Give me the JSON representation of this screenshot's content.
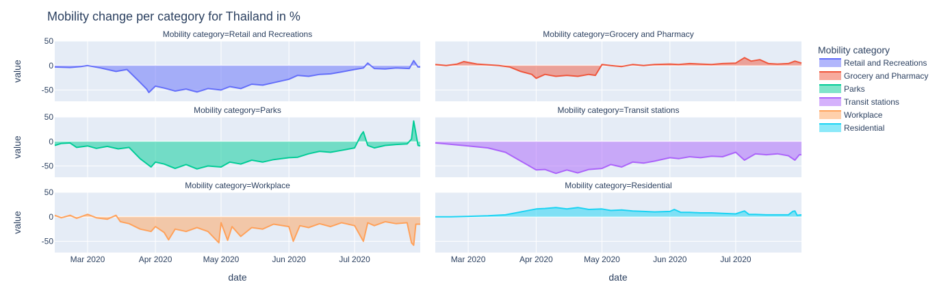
{
  "chart_data": {
    "type": "area",
    "title": "Mobility change per category for Thailand in %",
    "x_label": "date",
    "y_label": "value",
    "x_ticks": [
      "Mar 2020",
      "Apr 2020",
      "May 2020",
      "Jun 2020",
      "Jul 2020"
    ],
    "x_tick_dates": [
      "2020-03-01",
      "2020-04-01",
      "2020-05-01",
      "2020-06-01",
      "2020-07-01"
    ],
    "x_range": [
      "2020-02-15",
      "2020-07-31"
    ],
    "y_ticks": [
      50,
      0,
      -50
    ],
    "y_range": [
      -73,
      50
    ],
    "grid": true,
    "legend_title": "Mobility category",
    "legend_position": "right",
    "series": [
      {
        "name": "Retail and Recreations",
        "facet_label": "Mobility category=Retail and Recreations",
        "color": "#636efa",
        "fill": "rgba(99,110,250,0.5)",
        "points": [
          [
            "2020-02-15",
            -3
          ],
          [
            "2020-02-22",
            -4
          ],
          [
            "2020-02-27",
            -2
          ],
          [
            "2020-03-01",
            0
          ],
          [
            "2020-03-07",
            -5
          ],
          [
            "2020-03-14",
            -12
          ],
          [
            "2020-03-19",
            -8
          ],
          [
            "2020-03-24",
            -30
          ],
          [
            "2020-03-28",
            -48
          ],
          [
            "2020-03-29",
            -55
          ],
          [
            "2020-04-01",
            -42
          ],
          [
            "2020-04-05",
            -46
          ],
          [
            "2020-04-10",
            -52
          ],
          [
            "2020-04-15",
            -48
          ],
          [
            "2020-04-20",
            -54
          ],
          [
            "2020-04-25",
            -47
          ],
          [
            "2020-05-01",
            -50
          ],
          [
            "2020-05-05",
            -43
          ],
          [
            "2020-05-10",
            -47
          ],
          [
            "2020-05-15",
            -38
          ],
          [
            "2020-05-20",
            -40
          ],
          [
            "2020-05-25",
            -35
          ],
          [
            "2020-06-01",
            -28
          ],
          [
            "2020-06-05",
            -20
          ],
          [
            "2020-06-10",
            -22
          ],
          [
            "2020-06-15",
            -18
          ],
          [
            "2020-06-20",
            -17
          ],
          [
            "2020-06-25",
            -13
          ],
          [
            "2020-07-01",
            -8
          ],
          [
            "2020-07-05",
            -5
          ],
          [
            "2020-07-07",
            5
          ],
          [
            "2020-07-10",
            -6
          ],
          [
            "2020-07-15",
            -7
          ],
          [
            "2020-07-20",
            -5
          ],
          [
            "2020-07-26",
            -6
          ],
          [
            "2020-07-28",
            10
          ],
          [
            "2020-07-30",
            -3
          ],
          [
            "2020-07-31",
            -3
          ]
        ]
      },
      {
        "name": "Grocery and Pharmacy",
        "facet_label": "Mobility category=Grocery and Pharmacy",
        "color": "#ef553b",
        "fill": "rgba(239,85,59,0.5)",
        "points": [
          [
            "2020-02-15",
            2
          ],
          [
            "2020-02-20",
            0
          ],
          [
            "2020-02-25",
            3
          ],
          [
            "2020-02-28",
            8
          ],
          [
            "2020-03-05",
            3
          ],
          [
            "2020-03-15",
            0
          ],
          [
            "2020-03-20",
            -3
          ],
          [
            "2020-03-25",
            -12
          ],
          [
            "2020-03-30",
            -18
          ],
          [
            "2020-04-01",
            -26
          ],
          [
            "2020-04-05",
            -18
          ],
          [
            "2020-04-10",
            -22
          ],
          [
            "2020-04-15",
            -20
          ],
          [
            "2020-04-20",
            -22
          ],
          [
            "2020-04-25",
            -18
          ],
          [
            "2020-04-28",
            -20
          ],
          [
            "2020-05-01",
            2
          ],
          [
            "2020-05-05",
            0
          ],
          [
            "2020-05-10",
            -2
          ],
          [
            "2020-05-15",
            2
          ],
          [
            "2020-05-20",
            0
          ],
          [
            "2020-05-25",
            2
          ],
          [
            "2020-06-01",
            3
          ],
          [
            "2020-06-05",
            2
          ],
          [
            "2020-06-10",
            4
          ],
          [
            "2020-06-15",
            3
          ],
          [
            "2020-06-20",
            2
          ],
          [
            "2020-06-25",
            4
          ],
          [
            "2020-07-01",
            5
          ],
          [
            "2020-07-05",
            16
          ],
          [
            "2020-07-08",
            9
          ],
          [
            "2020-07-12",
            12
          ],
          [
            "2020-07-16",
            4
          ],
          [
            "2020-07-20",
            3
          ],
          [
            "2020-07-25",
            4
          ],
          [
            "2020-07-28",
            9
          ],
          [
            "2020-07-31",
            5
          ]
        ]
      },
      {
        "name": "Parks",
        "facet_label": "Mobility category=Parks",
        "color": "#00cc96",
        "fill": "rgba(0,204,150,0.5)",
        "points": [
          [
            "2020-02-15",
            -8
          ],
          [
            "2020-02-18",
            -4
          ],
          [
            "2020-02-22",
            -3
          ],
          [
            "2020-02-25",
            -12
          ],
          [
            "2020-03-01",
            -9
          ],
          [
            "2020-03-05",
            -14
          ],
          [
            "2020-03-10",
            -10
          ],
          [
            "2020-03-15",
            -15
          ],
          [
            "2020-03-20",
            -12
          ],
          [
            "2020-03-25",
            -35
          ],
          [
            "2020-03-30",
            -52
          ],
          [
            "2020-04-01",
            -42
          ],
          [
            "2020-04-05",
            -46
          ],
          [
            "2020-04-10",
            -55
          ],
          [
            "2020-04-15",
            -47
          ],
          [
            "2020-04-20",
            -56
          ],
          [
            "2020-04-25",
            -50
          ],
          [
            "2020-05-01",
            -52
          ],
          [
            "2020-05-05",
            -42
          ],
          [
            "2020-05-10",
            -46
          ],
          [
            "2020-05-15",
            -38
          ],
          [
            "2020-05-20",
            -42
          ],
          [
            "2020-05-25",
            -37
          ],
          [
            "2020-06-01",
            -33
          ],
          [
            "2020-06-05",
            -32
          ],
          [
            "2020-06-10",
            -25
          ],
          [
            "2020-06-15",
            -20
          ],
          [
            "2020-06-20",
            -22
          ],
          [
            "2020-06-25",
            -18
          ],
          [
            "2020-07-01",
            -13
          ],
          [
            "2020-07-04",
            14
          ],
          [
            "2020-07-05",
            20
          ],
          [
            "2020-07-07",
            -8
          ],
          [
            "2020-07-10",
            -13
          ],
          [
            "2020-07-15",
            -8
          ],
          [
            "2020-07-20",
            -6
          ],
          [
            "2020-07-25",
            -5
          ],
          [
            "2020-07-27",
            5
          ],
          [
            "2020-07-28",
            42
          ],
          [
            "2020-07-30",
            -8
          ],
          [
            "2020-07-31",
            -9
          ]
        ]
      },
      {
        "name": "Transit stations",
        "facet_label": "Mobility category=Transit stations",
        "color": "#ab63fa",
        "fill": "rgba(171,99,250,0.5)",
        "points": [
          [
            "2020-02-15",
            -3
          ],
          [
            "2020-02-20",
            -5
          ],
          [
            "2020-02-25",
            -7
          ],
          [
            "2020-03-01",
            -9
          ],
          [
            "2020-03-10",
            -13
          ],
          [
            "2020-03-18",
            -22
          ],
          [
            "2020-03-25",
            -40
          ],
          [
            "2020-04-01",
            -58
          ],
          [
            "2020-04-05",
            -57
          ],
          [
            "2020-04-10",
            -65
          ],
          [
            "2020-04-15",
            -58
          ],
          [
            "2020-04-20",
            -64
          ],
          [
            "2020-04-25",
            -57
          ],
          [
            "2020-05-01",
            -55
          ],
          [
            "2020-05-05",
            -47
          ],
          [
            "2020-05-10",
            -52
          ],
          [
            "2020-05-15",
            -42
          ],
          [
            "2020-05-20",
            -44
          ],
          [
            "2020-05-25",
            -40
          ],
          [
            "2020-06-01",
            -33
          ],
          [
            "2020-06-05",
            -35
          ],
          [
            "2020-06-10",
            -31
          ],
          [
            "2020-06-15",
            -33
          ],
          [
            "2020-06-20",
            -30
          ],
          [
            "2020-06-25",
            -31
          ],
          [
            "2020-07-01",
            -22
          ],
          [
            "2020-07-05",
            -38
          ],
          [
            "2020-07-10",
            -25
          ],
          [
            "2020-07-15",
            -27
          ],
          [
            "2020-07-20",
            -25
          ],
          [
            "2020-07-25",
            -29
          ],
          [
            "2020-07-28",
            -38
          ],
          [
            "2020-07-30",
            -27
          ],
          [
            "2020-07-31",
            -27
          ]
        ]
      },
      {
        "name": "Workplace",
        "facet_label": "Mobility category=Workplace",
        "color": "#ffa15a",
        "fill": "rgba(255,161,90,0.5)",
        "points": [
          [
            "2020-02-15",
            3
          ],
          [
            "2020-02-18",
            -2
          ],
          [
            "2020-02-22",
            3
          ],
          [
            "2020-02-25",
            -3
          ],
          [
            "2020-03-01",
            5
          ],
          [
            "2020-03-05",
            -2
          ],
          [
            "2020-03-10",
            -5
          ],
          [
            "2020-03-14",
            3
          ],
          [
            "2020-03-16",
            -10
          ],
          [
            "2020-03-20",
            -14
          ],
          [
            "2020-03-25",
            -25
          ],
          [
            "2020-03-30",
            -30
          ],
          [
            "2020-04-01",
            -20
          ],
          [
            "2020-04-05",
            -32
          ],
          [
            "2020-04-07",
            -47
          ],
          [
            "2020-04-10",
            -25
          ],
          [
            "2020-04-15",
            -30
          ],
          [
            "2020-04-20",
            -22
          ],
          [
            "2020-04-25",
            -30
          ],
          [
            "2020-04-30",
            -53
          ],
          [
            "2020-05-01",
            -12
          ],
          [
            "2020-05-04",
            -48
          ],
          [
            "2020-05-06",
            -20
          ],
          [
            "2020-05-10",
            -40
          ],
          [
            "2020-05-15",
            -22
          ],
          [
            "2020-05-20",
            -25
          ],
          [
            "2020-05-25",
            -15
          ],
          [
            "2020-06-01",
            -20
          ],
          [
            "2020-06-03",
            -50
          ],
          [
            "2020-06-06",
            -18
          ],
          [
            "2020-06-10",
            -22
          ],
          [
            "2020-06-15",
            -14
          ],
          [
            "2020-06-20",
            -20
          ],
          [
            "2020-06-25",
            -12
          ],
          [
            "2020-07-01",
            -18
          ],
          [
            "2020-07-05",
            -50
          ],
          [
            "2020-07-07",
            -12
          ],
          [
            "2020-07-10",
            -18
          ],
          [
            "2020-07-15",
            -10
          ],
          [
            "2020-07-20",
            -14
          ],
          [
            "2020-07-25",
            -12
          ],
          [
            "2020-07-27",
            -53
          ],
          [
            "2020-07-28",
            -58
          ],
          [
            "2020-07-29",
            -15
          ],
          [
            "2020-07-31",
            -15
          ]
        ]
      },
      {
        "name": "Residential",
        "facet_label": "Mobility category=Residential",
        "color": "#19d3f3",
        "fill": "rgba(25,211,243,0.5)",
        "points": [
          [
            "2020-02-15",
            0
          ],
          [
            "2020-02-22",
            0
          ],
          [
            "2020-03-01",
            1
          ],
          [
            "2020-03-10",
            2
          ],
          [
            "2020-03-18",
            4
          ],
          [
            "2020-03-25",
            10
          ],
          [
            "2020-04-01",
            16
          ],
          [
            "2020-04-05",
            17
          ],
          [
            "2020-04-10",
            19
          ],
          [
            "2020-04-15",
            16
          ],
          [
            "2020-04-20",
            19
          ],
          [
            "2020-04-25",
            15
          ],
          [
            "2020-05-01",
            16
          ],
          [
            "2020-05-05",
            13
          ],
          [
            "2020-05-10",
            14
          ],
          [
            "2020-05-15",
            12
          ],
          [
            "2020-05-20",
            11
          ],
          [
            "2020-05-25",
            10
          ],
          [
            "2020-06-01",
            11
          ],
          [
            "2020-06-03",
            15
          ],
          [
            "2020-06-06",
            9
          ],
          [
            "2020-06-10",
            9
          ],
          [
            "2020-06-15",
            8
          ],
          [
            "2020-06-20",
            8
          ],
          [
            "2020-06-25",
            7
          ],
          [
            "2020-07-01",
            6
          ],
          [
            "2020-07-05",
            12
          ],
          [
            "2020-07-07",
            5
          ],
          [
            "2020-07-10",
            5
          ],
          [
            "2020-07-15",
            4
          ],
          [
            "2020-07-20",
            4
          ],
          [
            "2020-07-25",
            4
          ],
          [
            "2020-07-27",
            11
          ],
          [
            "2020-07-28",
            12
          ],
          [
            "2020-07-29",
            3
          ],
          [
            "2020-07-31",
            4
          ]
        ]
      }
    ]
  }
}
